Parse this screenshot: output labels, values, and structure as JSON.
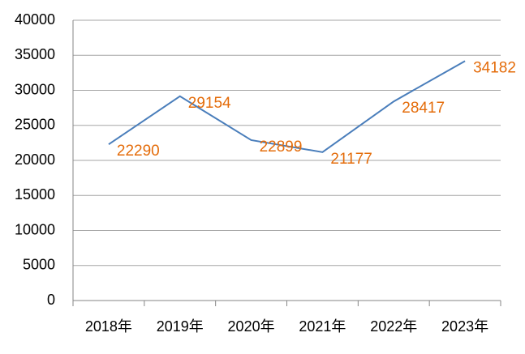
{
  "chart_data": {
    "type": "line",
    "categories": [
      "2018年",
      "2019年",
      "2020年",
      "2021年",
      "2022年",
      "2023年"
    ],
    "series": [
      {
        "color": "#4a7ebb",
        "label_color": "#e46c0a",
        "values": [
          22290,
          29154,
          22899,
          21177,
          28417,
          34182
        ]
      }
    ],
    "ylim": [
      0,
      40000
    ],
    "yticks": [
      0,
      5000,
      10000,
      15000,
      20000,
      25000,
      30000,
      35000,
      40000
    ],
    "grid": true
  }
}
